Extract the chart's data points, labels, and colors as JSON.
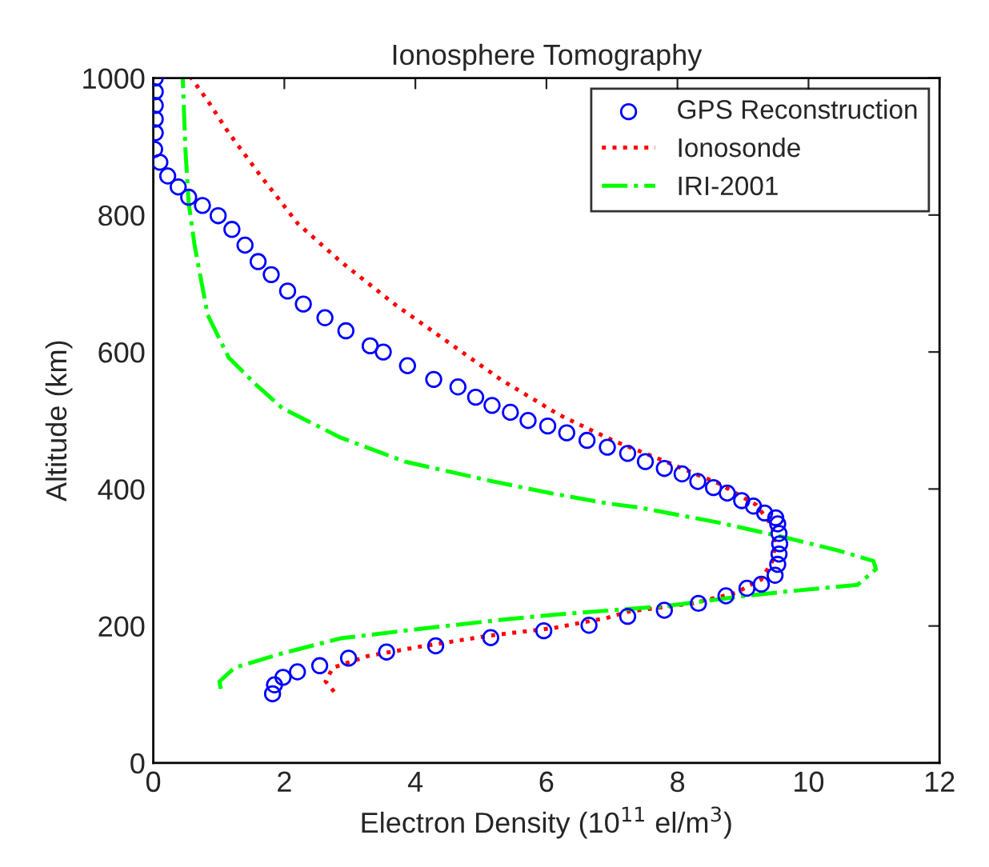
{
  "chart_data": {
    "type": "line",
    "title": "Ionosphere Tomography",
    "xlabel": "Electron Density (10$^{11}$ el/m$^{3}$)",
    "ylabel": "Altitude (km)",
    "xlim": [
      0,
      12
    ],
    "ylim": [
      0,
      1000
    ],
    "xticks": [
      0,
      2,
      4,
      6,
      8,
      10,
      12
    ],
    "yticks": [
      0,
      200,
      400,
      600,
      800,
      1000
    ],
    "grid": false,
    "legend": "top right",
    "series": [
      {
        "name": "GPS Reconstruction",
        "type": "scatter",
        "marker": "circle",
        "color": "#0000ff",
        "x": [
          1.82,
          1.85,
          1.98,
          2.2,
          2.54,
          2.98,
          3.56,
          4.31,
          5.15,
          5.96,
          6.65,
          7.24,
          7.8,
          8.32,
          8.74,
          9.06,
          9.28,
          9.49,
          9.53,
          9.55,
          9.56,
          9.55,
          9.53,
          9.5,
          9.33,
          9.16,
          8.98,
          8.76,
          8.55,
          8.31,
          8.07,
          7.8,
          7.51,
          7.24,
          6.93,
          6.62,
          6.31,
          6.02,
          5.72,
          5.45,
          5.17,
          4.92,
          4.65,
          4.28,
          3.88,
          3.51,
          3.31,
          2.94,
          2.62,
          2.29,
          2.05,
          1.8,
          1.6,
          1.4,
          1.2,
          0.99,
          0.75,
          0.54,
          0.38,
          0.22,
          0.1,
          0.02,
          0.03,
          0.03,
          0.03,
          0.03,
          0.03
        ],
        "values": [
          101,
          114,
          125,
          133,
          142,
          153,
          162,
          171,
          183,
          193,
          201,
          214,
          223,
          233,
          244,
          255,
          261,
          274,
          290,
          305,
          320,
          335,
          349,
          358,
          365,
          375,
          383,
          394,
          402,
          411,
          422,
          430,
          440,
          452,
          461,
          471,
          482,
          492,
          500,
          512,
          522,
          534,
          549,
          560,
          580,
          600,
          609,
          631,
          650,
          670,
          689,
          713,
          732,
          756,
          779,
          799,
          814,
          826,
          841,
          857,
          877,
          896,
          920,
          940,
          960,
          980,
          1000
        ]
      },
      {
        "name": "Ionosonde",
        "line_style": "dotted",
        "color": "#ff0000",
        "x": [
          2.76,
          2.63,
          2.74,
          3.27,
          4.08,
          5.14,
          6.11,
          6.93,
          7.25,
          8.23,
          8.88,
          9.28,
          9.45,
          9.49,
          9.45,
          9.2,
          8.63,
          7.82,
          7.01,
          6.2,
          5.3,
          4.49,
          3.68,
          2.86,
          2.21,
          1.64,
          1.15,
          0.83,
          0.58
        ],
        "values": [
          104,
          119,
          139,
          156,
          170,
          186,
          197,
          212,
          221,
          233,
          248,
          268,
          295,
          318,
          346,
          377,
          408,
          440,
          471,
          508,
          560,
          615,
          670,
          732,
          787,
          857,
          920,
          967,
          1000
        ]
      },
      {
        "name": "IRI-2001",
        "line_style": "dashdot",
        "color": "#00ff00",
        "x": [
          1.03,
          1.01,
          1.24,
          1.89,
          2.86,
          4.0,
          5.3,
          6.2,
          7.82,
          9.04,
          9.85,
          10.75,
          11.03,
          10.99,
          10.42,
          9.61,
          8.63,
          7.41,
          6.93,
          6.11,
          5.14,
          3.84,
          2.86,
          1.97,
          1.56,
          1.15,
          0.83,
          0.63,
          0.54,
          0.49,
          0.45
        ],
        "values": [
          108,
          119,
          139,
          158,
          182,
          195,
          209,
          217,
          229,
          244,
          252,
          260,
          283,
          295,
          311,
          330,
          351,
          373,
          379,
          393,
          412,
          440,
          475,
          518,
          553,
          592,
          654,
          756,
          818,
          896,
          1000
        ]
      }
    ]
  }
}
